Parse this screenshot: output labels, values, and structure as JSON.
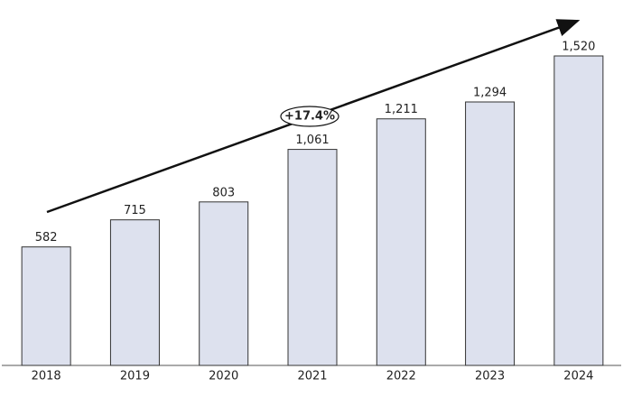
{
  "chart_data": {
    "type": "bar",
    "categories": [
      "2018",
      "2019",
      "2020",
      "2021",
      "2022",
      "2023",
      "2024"
    ],
    "values": [
      582,
      715,
      803,
      1061,
      1211,
      1294,
      1520
    ],
    "value_labels": [
      "582",
      "715",
      "803",
      "1,061",
      "1,211",
      "1,294",
      "1,520"
    ],
    "color": "#dde1ee",
    "annotation": "+17.4%"
  }
}
